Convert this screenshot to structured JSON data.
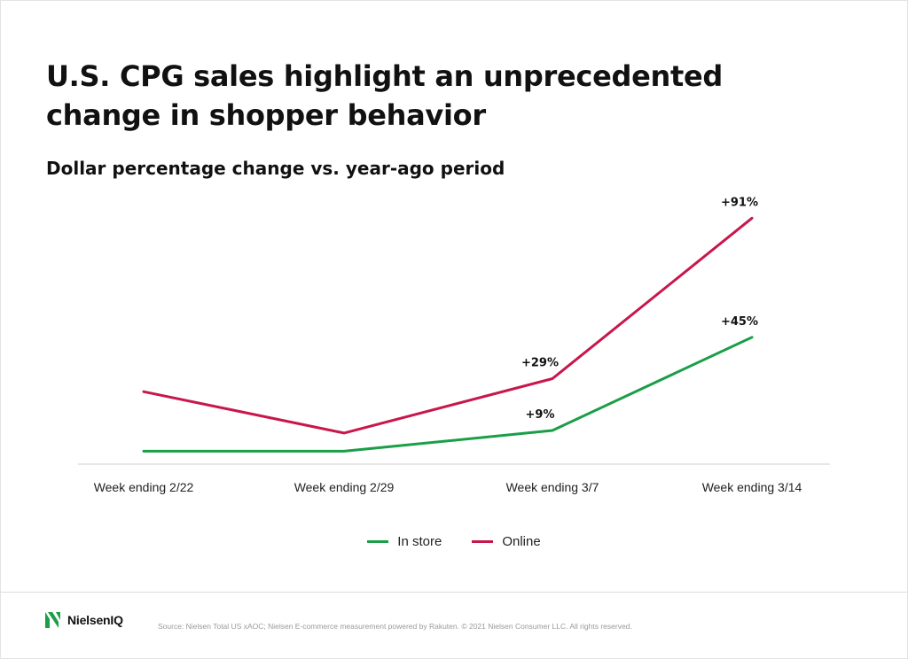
{
  "header": {
    "title": "U.S. CPG sales highlight an unprecedented change in shopper behavior",
    "subtitle": "Dollar percentage change vs. year-ago period"
  },
  "chart_data": {
    "type": "line",
    "categories": [
      "Week ending 2/22",
      "Week ending 2/29",
      "Week ending 3/7",
      "Week ending 3/14"
    ],
    "series": [
      {
        "name": "In store",
        "color": "#1a9e47",
        "values": [
          1,
          1,
          9,
          45
        ],
        "data_labels": [
          null,
          null,
          "+9%",
          "+45%"
        ]
      },
      {
        "name": "Online",
        "color": "#c8174b",
        "values": [
          24,
          8,
          29,
          91
        ],
        "data_labels": [
          null,
          null,
          "+29%",
          "+91%"
        ]
      }
    ],
    "ylim": [
      -4,
      100
    ],
    "grid": false,
    "legend_position": "bottom-center"
  },
  "footer": {
    "logo_text": "NielsenIQ",
    "logo_color": "#1a9e47",
    "source": "Source: Nielsen Total US xAOC; Nielsen E-commerce measurement powered by Rakuten. © 2021 Nielsen Consumer LLC. All rights reserved."
  }
}
